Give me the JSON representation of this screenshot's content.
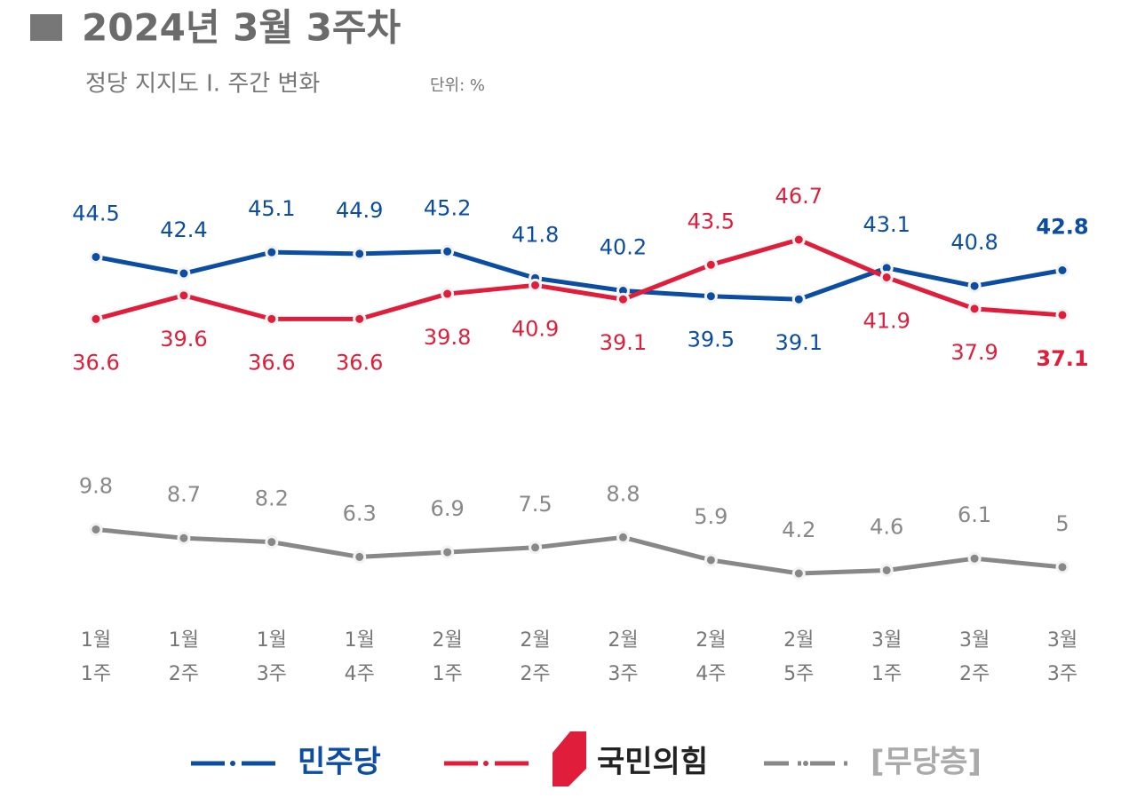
{
  "chart_data": {
    "type": "line",
    "title": "2024년 3월 3주차",
    "subtitle": "정당 지지도 Ⅰ. 주간 변화",
    "unit": "단위: %",
    "categories": [
      "1월 1주",
      "1월 2주",
      "1월 3주",
      "1월 4주",
      "2월 1주",
      "2월 2주",
      "2월 3주",
      "2월 4주",
      "2월 5주",
      "3월 1주",
      "3월 2주",
      "3월 3주"
    ],
    "series": [
      {
        "name": "민주당",
        "color": "#0b4da2",
        "values": [
          44.5,
          42.4,
          45.1,
          44.9,
          45.2,
          41.8,
          40.2,
          39.5,
          39.1,
          43.1,
          40.8,
          42.8
        ]
      },
      {
        "name": "국민의힘",
        "color": "#e01e3c",
        "values": [
          36.6,
          39.6,
          36.6,
          36.6,
          39.8,
          40.9,
          39.1,
          43.5,
          46.7,
          41.9,
          37.9,
          37.1
        ]
      },
      {
        "name": "[무당층]",
        "color": "#888888",
        "values": [
          9.8,
          8.7,
          8.2,
          6.3,
          6.9,
          7.5,
          8.8,
          5.9,
          4.2,
          4.6,
          6.1,
          5.0
        ]
      }
    ]
  }
}
